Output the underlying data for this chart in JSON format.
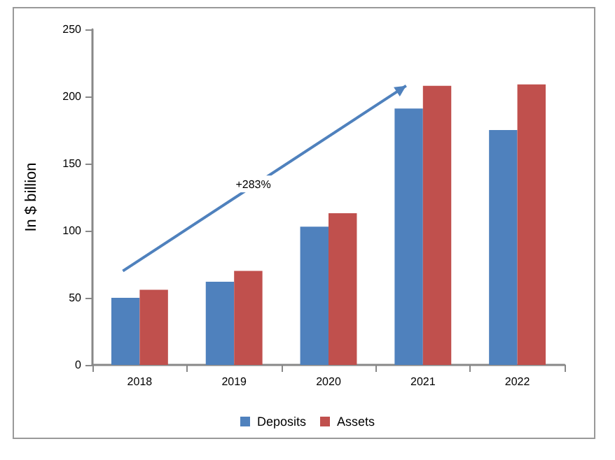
{
  "chart_data": {
    "type": "bar",
    "ylabel": "In $ billion",
    "categories": [
      "2018",
      "2019",
      "2020",
      "2021",
      "2022"
    ],
    "series": [
      {
        "name": "Deposits",
        "color": "#4f81bd",
        "values": [
          50,
          62,
          103,
          191,
          175
        ]
      },
      {
        "name": "Assets",
        "color": "#c0504d",
        "values": [
          56,
          70,
          113,
          208,
          209
        ]
      }
    ],
    "ylim": [
      0,
      250
    ],
    "yticks": [
      0,
      50,
      100,
      150,
      200,
      250
    ],
    "grid": false,
    "legend": "bottom",
    "annotations": [
      "+283%"
    ]
  }
}
